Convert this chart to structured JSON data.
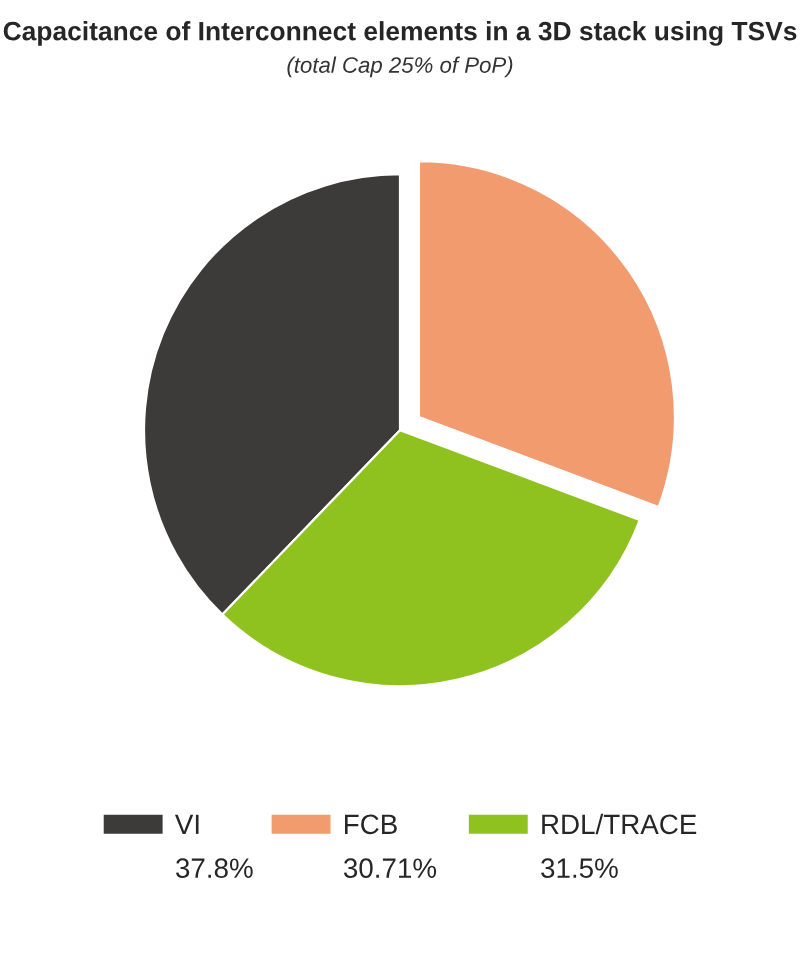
{
  "chart_data": {
    "type": "pie",
    "title": "Capacitance of Interconnect elements in a 3D stack using TSVs",
    "subtitle": "(total Cap 25% of PoP)",
    "categories": [
      "VI",
      "FCB",
      "RDL/TRACE"
    ],
    "values": [
      37.8,
      30.71,
      31.5
    ],
    "value_labels": [
      "37.8%",
      "30.71%",
      "31.5%"
    ],
    "colors": [
      "#3d3a3a",
      "#f29b6f",
      "#8fc21f"
    ],
    "legend": "bottom"
  }
}
